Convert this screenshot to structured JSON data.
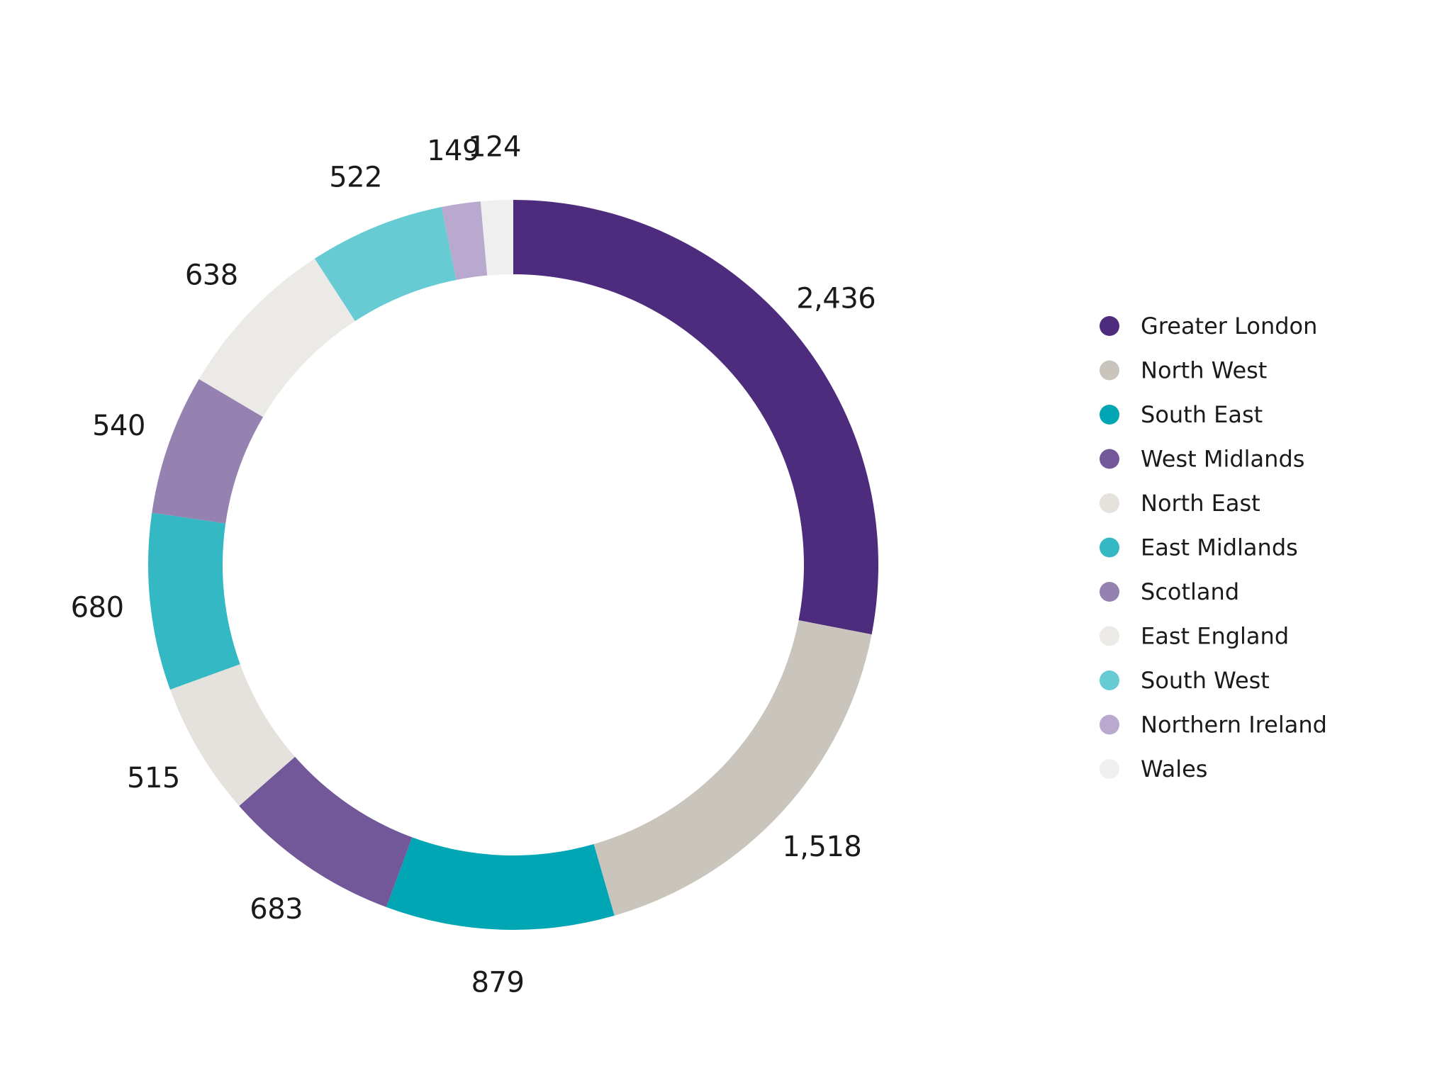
{
  "chart_data": {
    "type": "pie",
    "variant": "donut",
    "title": "",
    "categories": [
      "Greater London",
      "North West",
      "South East",
      "West Midlands",
      "North East",
      "East Midlands",
      "Scotland",
      "East England",
      "South West",
      "Northern Ireland",
      "Wales"
    ],
    "values": [
      2436,
      1518,
      879,
      683,
      515,
      680,
      540,
      638,
      522,
      149,
      124
    ],
    "value_labels": [
      "2,436",
      "1,518",
      "879",
      "683",
      "515",
      "680",
      "540",
      "638",
      "522",
      "149",
      "124"
    ],
    "colors": [
      "#4e2c7d",
      "#c9c4bc",
      "#00a6b4",
      "#735899",
      "#e5e2de",
      "#33b8c4",
      "#9582b1",
      "#eceae7",
      "#66cbd2",
      "#b9a9cf",
      "#efefef"
    ],
    "start_angle": "12 o'clock",
    "direction": "clockwise",
    "legend": {
      "position": "right",
      "labels": [
        "Greater London",
        "North West",
        "South East",
        "West Midlands",
        "North East",
        "East Midlands",
        "Scotland",
        "East England",
        "South West",
        "Northern Ireland",
        "Wales"
      ]
    }
  }
}
